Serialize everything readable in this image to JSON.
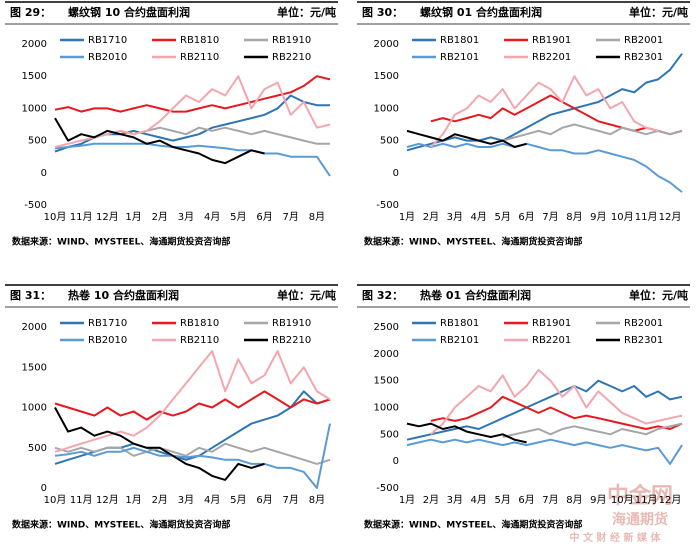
{
  "chart_data": [
    {
      "type": "line",
      "figure": "图 29：",
      "title": "螺纹钢 10 合约盘面利润",
      "unit": "单位：元/吨",
      "source": "数据来源：WIND、MYSTEEL、海通期货投资咨询部",
      "categories": [
        "10月",
        null,
        "11月",
        null,
        "12月",
        null,
        "1月",
        null,
        "2月",
        null,
        "3月",
        null,
        "4月",
        null,
        "5月",
        null,
        "6月",
        null,
        "7月",
        null,
        "8月",
        null
      ],
      "ylim": [
        -500,
        2000
      ],
      "yticks": [
        -500,
        0,
        500,
        1000,
        1500,
        2000
      ],
      "series": [
        {
          "name": "RB1710",
          "color": "#2e75b6",
          "values": [
            330,
            400,
            450,
            550,
            600,
            600,
            650,
            600,
            550,
            500,
            550,
            600,
            700,
            750,
            800,
            850,
            900,
            1000,
            1200,
            1100,
            1050,
            1050
          ]
        },
        {
          "name": "RB1810",
          "color": "#e8191e",
          "values": [
            980,
            1020,
            950,
            1000,
            1000,
            950,
            1000,
            1050,
            1000,
            950,
            950,
            1000,
            1050,
            1000,
            1050,
            1100,
            1150,
            1200,
            1250,
            1350,
            1500,
            1450
          ]
        },
        {
          "name": "RB1910",
          "color": "#a6a6a6",
          "values": [
            null,
            null,
            null,
            null,
            600,
            650,
            600,
            650,
            700,
            650,
            600,
            700,
            650,
            700,
            650,
            600,
            650,
            600,
            550,
            500,
            450,
            450
          ]
        },
        {
          "name": "RB2010",
          "color": "#5b9bd5",
          "values": [
            380,
            400,
            420,
            450,
            450,
            450,
            450,
            450,
            420,
            400,
            400,
            420,
            400,
            380,
            350,
            350,
            300,
            300,
            250,
            250,
            250,
            -50
          ]
        },
        {
          "name": "RB2110",
          "color": "#f4a6ae",
          "values": [
            400,
            450,
            500,
            550,
            600,
            650,
            600,
            650,
            800,
            1000,
            1200,
            1100,
            1300,
            1200,
            1500,
            1000,
            1300,
            1400,
            900,
            1100,
            700,
            750
          ]
        },
        {
          "name": "RB2210",
          "color": "#000000",
          "values": [
            850,
            500,
            600,
            550,
            650,
            600,
            550,
            450,
            500,
            400,
            350,
            300,
            200,
            150,
            250,
            350,
            300,
            null,
            null,
            null,
            null,
            null
          ]
        }
      ]
    },
    {
      "type": "line",
      "figure": "图 30：",
      "title": "螺纹钢 01 合约盘面利润",
      "unit": "单位：元/吨",
      "source": "数据来源：WIND、MYSTEEL、海通期货投资咨询部",
      "categories": [
        "1月",
        null,
        "2月",
        null,
        "3月",
        null,
        "4月",
        null,
        "5月",
        null,
        "6月",
        null,
        "7月",
        null,
        "8月",
        null,
        "9月",
        null,
        "10月",
        null,
        "11月",
        null,
        "12月",
        null
      ],
      "ylim": [
        -500,
        2000
      ],
      "yticks": [
        -500,
        0,
        500,
        1000,
        1500,
        2000
      ],
      "series": [
        {
          "name": "RB1801",
          "color": "#2e75b6",
          "values": [
            350,
            400,
            450,
            500,
            550,
            500,
            500,
            550,
            500,
            600,
            700,
            800,
            900,
            950,
            1000,
            1050,
            1100,
            1200,
            1300,
            1250,
            1400,
            1450,
            1600,
            1850
          ]
        },
        {
          "name": "RB1901",
          "color": "#e8191e",
          "values": [
            null,
            null,
            800,
            850,
            800,
            850,
            900,
            850,
            1000,
            900,
            1000,
            1100,
            1200,
            1100,
            1000,
            900,
            800,
            750,
            700,
            650,
            700,
            650,
            600,
            650
          ]
        },
        {
          "name": "RB2001",
          "color": "#a6a6a6",
          "values": [
            null,
            null,
            null,
            null,
            null,
            null,
            null,
            null,
            500,
            550,
            600,
            650,
            600,
            700,
            750,
            700,
            650,
            600,
            700,
            650,
            600,
            650,
            600,
            650
          ]
        },
        {
          "name": "RB2101",
          "color": "#5b9bd5",
          "values": [
            400,
            450,
            400,
            450,
            400,
            450,
            400,
            400,
            450,
            400,
            450,
            400,
            350,
            350,
            300,
            300,
            350,
            300,
            250,
            200,
            100,
            -50,
            -150,
            -300
          ]
        },
        {
          "name": "RB2201",
          "color": "#f4a6ae",
          "values": [
            null,
            null,
            400,
            600,
            900,
            1000,
            1200,
            1100,
            1300,
            1000,
            1200,
            1400,
            1300,
            1100,
            1500,
            1200,
            1300,
            1000,
            1100,
            800,
            700,
            650,
            null,
            null
          ]
        },
        {
          "name": "RB2301",
          "color": "#000000",
          "values": [
            650,
            600,
            550,
            500,
            600,
            550,
            500,
            450,
            500,
            400,
            450,
            null,
            null,
            null,
            null,
            null,
            null,
            null,
            null,
            null,
            null,
            null,
            null,
            null
          ]
        }
      ]
    },
    {
      "type": "line",
      "figure": "图 31：",
      "title": "热卷 10 合约盘面利润",
      "unit": "单位：元/吨",
      "source": "数据来源：WIND、MYSTEEL、海通期货投资咨询部",
      "categories": [
        "10月",
        null,
        "11月",
        null,
        "12月",
        null,
        "1月",
        null,
        "2月",
        null,
        "3月",
        null,
        "4月",
        null,
        "5月",
        null,
        "6月",
        null,
        "7月",
        null,
        "8月",
        null
      ],
      "ylim": [
        0,
        2000
      ],
      "yticks": [
        0,
        500,
        1000,
        1500,
        2000
      ],
      "series": [
        {
          "name": "RB1710",
          "color": "#2e75b6",
          "values": [
            300,
            350,
            400,
            450,
            500,
            500,
            550,
            500,
            450,
            400,
            350,
            400,
            500,
            600,
            700,
            800,
            850,
            900,
            1000,
            1200,
            1050,
            1100
          ]
        },
        {
          "name": "RB1810",
          "color": "#e8191e",
          "values": [
            1050,
            1000,
            950,
            900,
            1000,
            900,
            950,
            850,
            950,
            900,
            950,
            1050,
            1000,
            1100,
            1000,
            1100,
            1200,
            1100,
            1000,
            1100,
            1050,
            1100
          ]
        },
        {
          "name": "RB1910",
          "color": "#a6a6a6",
          "values": [
            500,
            450,
            500,
            450,
            500,
            500,
            400,
            450,
            500,
            450,
            400,
            500,
            450,
            550,
            500,
            450,
            500,
            450,
            400,
            350,
            300,
            350
          ]
        },
        {
          "name": "RB2010",
          "color": "#5b9bd5",
          "values": [
            400,
            420,
            450,
            400,
            450,
            450,
            500,
            450,
            400,
            400,
            380,
            400,
            380,
            350,
            350,
            300,
            300,
            250,
            250,
            200,
            0,
            800
          ]
        },
        {
          "name": "RB2110",
          "color": "#f4a6ae",
          "values": [
            450,
            500,
            550,
            600,
            650,
            700,
            650,
            750,
            900,
            1100,
            1300,
            1500,
            1700,
            1200,
            1600,
            1300,
            1400,
            1700,
            1300,
            1500,
            1200,
            1100
          ]
        },
        {
          "name": "RB2210",
          "color": "#000000",
          "values": [
            1000,
            700,
            750,
            650,
            700,
            650,
            550,
            500,
            500,
            400,
            300,
            250,
            150,
            100,
            300,
            250,
            300,
            null,
            null,
            null,
            null,
            null
          ]
        }
      ]
    },
    {
      "type": "line",
      "figure": "图 32：",
      "title": "热卷 01 合约盘面利润",
      "unit": "单位：元/吨",
      "source": "数据来源：WIND、MYSTEEL、海通期货投资咨询部",
      "categories": [
        "1月",
        null,
        "2月",
        null,
        "3月",
        null,
        "4月",
        null,
        "5月",
        null,
        "6月",
        null,
        "7月",
        null,
        "8月",
        null,
        "9月",
        null,
        "10月",
        null,
        "11月",
        null,
        "12月",
        null
      ],
      "ylim": [
        -500,
        2500
      ],
      "yticks": [
        -500,
        0,
        500,
        1000,
        1500,
        2000,
        2500
      ],
      "series": [
        {
          "name": "RB1801",
          "color": "#2e75b6",
          "values": [
            400,
            450,
            500,
            550,
            600,
            650,
            600,
            700,
            800,
            900,
            1000,
            1100,
            1200,
            1300,
            1400,
            1300,
            1500,
            1400,
            1300,
            1400,
            1200,
            1300,
            1150,
            1200
          ]
        },
        {
          "name": "RB1901",
          "color": "#e8191e",
          "values": [
            null,
            null,
            750,
            800,
            750,
            800,
            900,
            1000,
            1200,
            1100,
            1000,
            900,
            1000,
            900,
            800,
            850,
            800,
            750,
            700,
            650,
            600,
            650,
            600,
            700
          ]
        },
        {
          "name": "RB2001",
          "color": "#a6a6a6",
          "values": [
            null,
            null,
            null,
            null,
            null,
            null,
            null,
            null,
            450,
            500,
            550,
            600,
            500,
            600,
            650,
            600,
            550,
            500,
            600,
            550,
            500,
            600,
            650,
            700
          ]
        },
        {
          "name": "RB2101",
          "color": "#5b9bd5",
          "values": [
            300,
            350,
            400,
            350,
            400,
            350,
            400,
            350,
            300,
            350,
            300,
            350,
            400,
            350,
            300,
            350,
            300,
            250,
            300,
            250,
            200,
            250,
            -50,
            300
          ]
        },
        {
          "name": "RB2201",
          "color": "#f4a6ae",
          "values": [
            null,
            null,
            500,
            700,
            1000,
            1200,
            1400,
            1300,
            1600,
            1200,
            1400,
            1700,
            1500,
            1200,
            1400,
            1000,
            1300,
            1100,
            900,
            800,
            700,
            750,
            800,
            850
          ]
        },
        {
          "name": "RB2301",
          "color": "#000000",
          "values": [
            700,
            650,
            700,
            600,
            650,
            550,
            500,
            450,
            500,
            400,
            350,
            null,
            null,
            null,
            null,
            null,
            null,
            null,
            null,
            null,
            null,
            null,
            null,
            null
          ]
        }
      ]
    }
  ],
  "watermark": [
    "中金网",
    "海通期货",
    "中 文 财 经 新 媒 体"
  ]
}
